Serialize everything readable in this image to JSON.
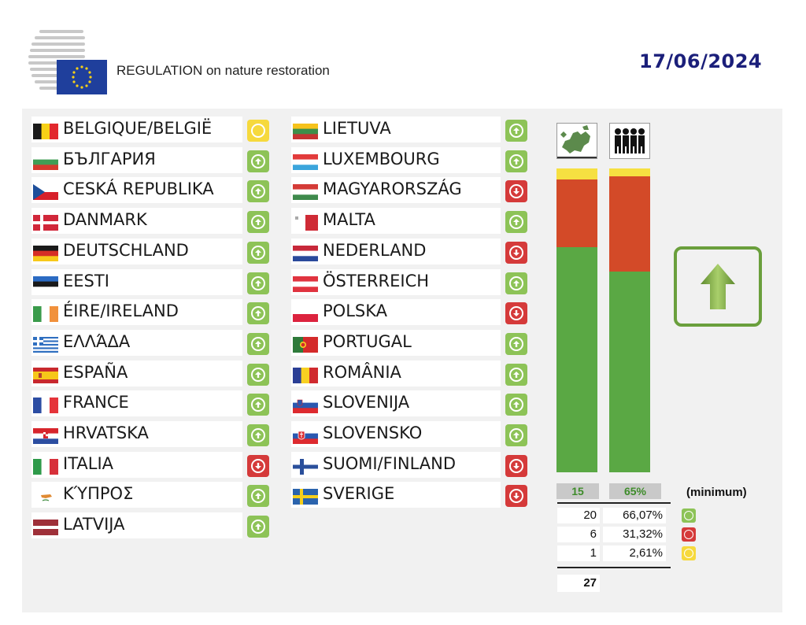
{
  "header": {
    "title": "REGULATION on nature restoration",
    "date": "17/06/2024"
  },
  "colors": {
    "for": "#8dc357",
    "against": "#d53a3a",
    "abstain": "#f6d93d",
    "bar_for": "#5aa844",
    "bar_against": "#d34a28",
    "bar_abstain": "#f6e041",
    "date": "#1b1f7a"
  },
  "countries_col_a": [
    {
      "name": "BELGIQUE/BELGIË",
      "vote": "abstain",
      "flag": "be"
    },
    {
      "name": "БЪЛГАРИЯ",
      "vote": "for",
      "flag": "bg"
    },
    {
      "name": "CESKÁ REPUBLIKA",
      "vote": "for",
      "flag": "cz"
    },
    {
      "name": "DANMARK",
      "vote": "for",
      "flag": "dk"
    },
    {
      "name": "DEUTSCHLAND",
      "vote": "for",
      "flag": "de"
    },
    {
      "name": "EESTI",
      "vote": "for",
      "flag": "ee"
    },
    {
      "name": "ÉIRE/IRELAND",
      "vote": "for",
      "flag": "ie"
    },
    {
      "name": "ΕΛΛΆΔΑ",
      "vote": "for",
      "flag": "gr"
    },
    {
      "name": "ESPAÑA",
      "vote": "for",
      "flag": "es"
    },
    {
      "name": "FRANCE",
      "vote": "for",
      "flag": "fr"
    },
    {
      "name": "HRVATSKA",
      "vote": "for",
      "flag": "hr"
    },
    {
      "name": "ITALIA",
      "vote": "against",
      "flag": "it"
    },
    {
      "name": "ΚΎΠΡΟΣ",
      "vote": "for",
      "flag": "cy"
    },
    {
      "name": "LATVIJA",
      "vote": "for",
      "flag": "lv"
    }
  ],
  "countries_col_b": [
    {
      "name": "LIETUVA",
      "vote": "for",
      "flag": "lt"
    },
    {
      "name": "LUXEMBOURG",
      "vote": "for",
      "flag": "lu"
    },
    {
      "name": "MAGYARORSZÁG",
      "vote": "against",
      "flag": "hu"
    },
    {
      "name": "MALTA",
      "vote": "for",
      "flag": "mt"
    },
    {
      "name": "NEDERLAND",
      "vote": "against",
      "flag": "nl"
    },
    {
      "name": "ÖSTERREICH",
      "vote": "for",
      "flag": "at"
    },
    {
      "name": "POLSKA",
      "vote": "against",
      "flag": "pl"
    },
    {
      "name": "PORTUGAL",
      "vote": "for",
      "flag": "pt"
    },
    {
      "name": "ROMÂNIA",
      "vote": "for",
      "flag": "ro"
    },
    {
      "name": "SLOVENIJA",
      "vote": "for",
      "flag": "si"
    },
    {
      "name": "SLOVENSKO",
      "vote": "for",
      "flag": "sk"
    },
    {
      "name": "SUOMI/FINLAND",
      "vote": "against",
      "flag": "fi"
    },
    {
      "name": "SVERIGE",
      "vote": "against",
      "flag": "se"
    }
  ],
  "bars": {
    "states": {
      "icon": "eu-map-icon",
      "for": 20,
      "against": 6,
      "abstain": 1,
      "total": 27,
      "minimum": "15"
    },
    "population": {
      "icon": "population-icon",
      "for": 66.07,
      "against": 31.32,
      "abstain": 2.61,
      "total": 100,
      "minimum": "65%"
    }
  },
  "minimum_label": "(minimum)",
  "result": {
    "icon": "arrow-up-icon",
    "outcome": "adopted"
  },
  "tally": [
    {
      "count": "20",
      "pct": "66,07%",
      "vote": "for"
    },
    {
      "count": "6",
      "pct": "31,32%",
      "vote": "against"
    },
    {
      "count": "1",
      "pct": "2,61%",
      "vote": "abstain"
    }
  ],
  "total": "27"
}
